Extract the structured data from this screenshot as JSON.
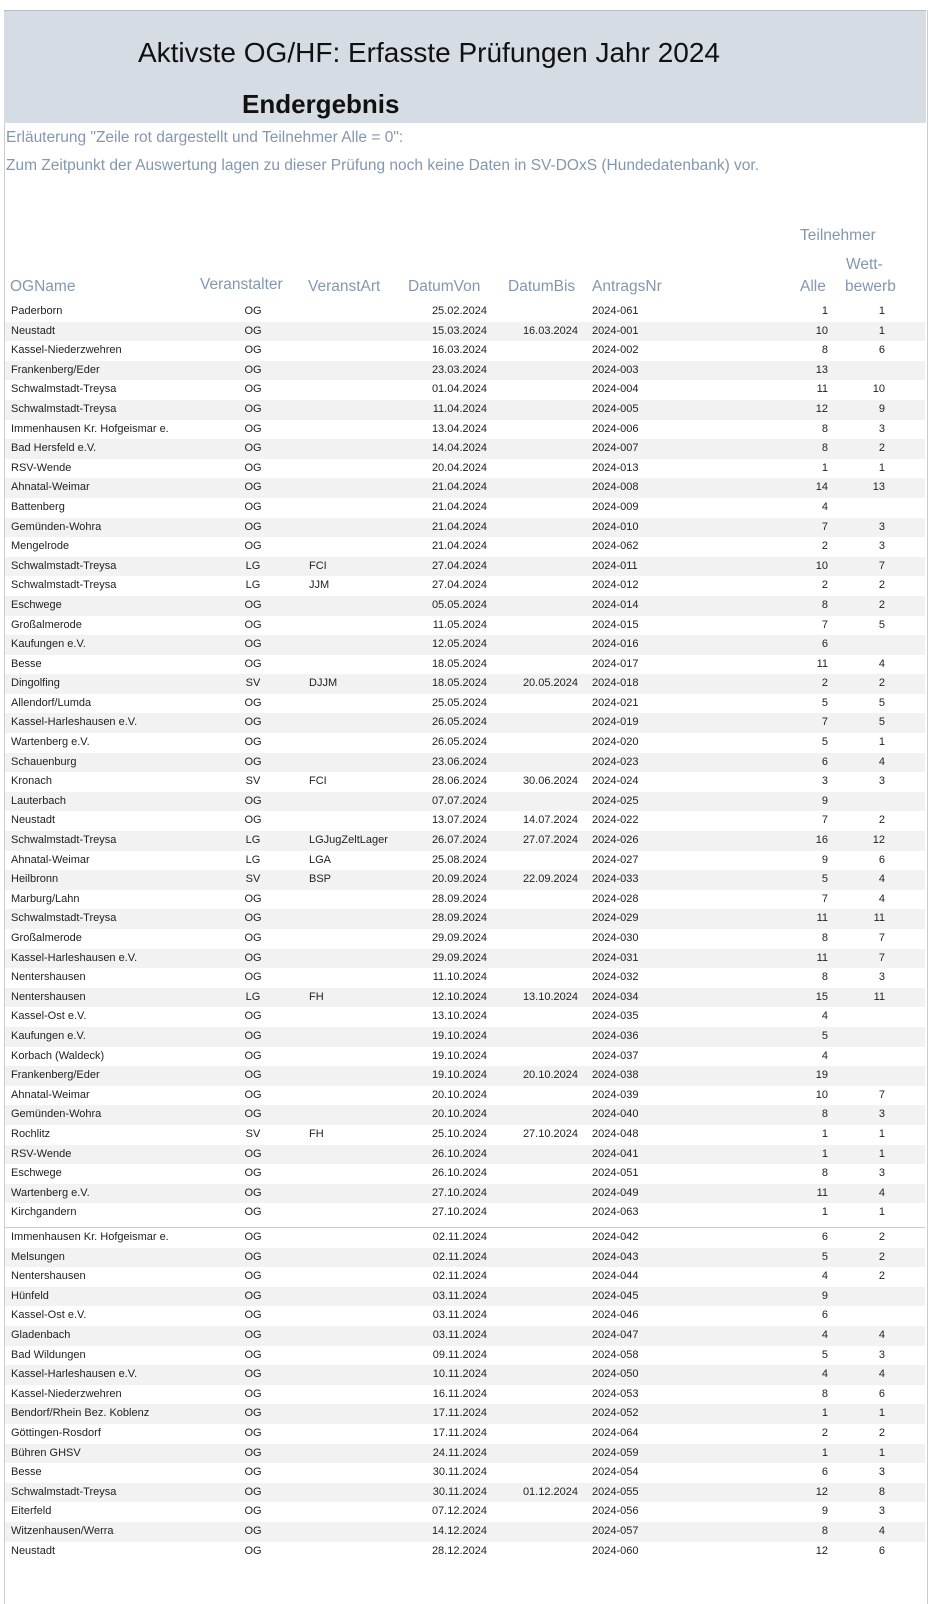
{
  "header": {
    "title": "Aktivste OG/HF: Erfasste Prüfungen Jahr 2024",
    "subtitle": "Endergebnis"
  },
  "notes": {
    "line1": "Erläuterung \"Zeile rot dargestellt und Teilnehmer Alle = 0\":",
    "line2": "Zum Zeitpunkt der Auswertung lagen zu dieser Prüfung noch keine Daten in SV-DOxS (Hundedatenbank) vor."
  },
  "columns": {
    "group": "Teilnehmer",
    "og_name": "OGName",
    "veranstalter": "Veranstalter",
    "veranst_art": "VeranstArt",
    "datum_von": "DatumVon",
    "datum_bis": "DatumBis",
    "antrags_nr": "AntragsNr",
    "alle": "Alle",
    "wett1": "Wett-",
    "wett2": "bewerb"
  },
  "colors": {
    "header_band": "#d6dce4",
    "label_text": "#8497b0",
    "stripe": "#f2f2f2"
  },
  "section1": [
    [
      "Paderborn",
      "OG",
      "",
      "25.02.2024",
      "",
      "2024-061",
      "1",
      "1"
    ],
    [
      "Neustadt",
      "OG",
      "",
      "15.03.2024",
      "16.03.2024",
      "2024-001",
      "10",
      "1"
    ],
    [
      "Kassel-Niederzwehren",
      "OG",
      "",
      "16.03.2024",
      "",
      "2024-002",
      "8",
      "6"
    ],
    [
      "Frankenberg/Eder",
      "OG",
      "",
      "23.03.2024",
      "",
      "2024-003",
      "13",
      ""
    ],
    [
      "Schwalmstadt-Treysa",
      "OG",
      "",
      "01.04.2024",
      "",
      "2024-004",
      "11",
      "10"
    ],
    [
      "Schwalmstadt-Treysa",
      "OG",
      "",
      "11.04.2024",
      "",
      "2024-005",
      "12",
      "9"
    ],
    [
      "Immenhausen Kr. Hofgeismar e.",
      "OG",
      "",
      "13.04.2024",
      "",
      "2024-006",
      "8",
      "3"
    ],
    [
      "Bad Hersfeld e.V.",
      "OG",
      "",
      "14.04.2024",
      "",
      "2024-007",
      "8",
      "2"
    ],
    [
      "RSV-Wende",
      "OG",
      "",
      "20.04.2024",
      "",
      "2024-013",
      "1",
      "1"
    ],
    [
      "Ahnatal-Weimar",
      "OG",
      "",
      "21.04.2024",
      "",
      "2024-008",
      "14",
      "13"
    ],
    [
      "Battenberg",
      "OG",
      "",
      "21.04.2024",
      "",
      "2024-009",
      "4",
      ""
    ],
    [
      "Gemünden-Wohra",
      "OG",
      "",
      "21.04.2024",
      "",
      "2024-010",
      "7",
      "3"
    ],
    [
      "Mengelrode",
      "OG",
      "",
      "21.04.2024",
      "",
      "2024-062",
      "2",
      "3"
    ],
    [
      "Schwalmstadt-Treysa",
      "LG",
      "FCI",
      "27.04.2024",
      "",
      "2024-011",
      "10",
      "7"
    ],
    [
      "Schwalmstadt-Treysa",
      "LG",
      "JJM",
      "27.04.2024",
      "",
      "2024-012",
      "2",
      "2"
    ],
    [
      "Eschwege",
      "OG",
      "",
      "05.05.2024",
      "",
      "2024-014",
      "8",
      "2"
    ],
    [
      "Großalmerode",
      "OG",
      "",
      "11.05.2024",
      "",
      "2024-015",
      "7",
      "5"
    ],
    [
      "Kaufungen e.V.",
      "OG",
      "",
      "12.05.2024",
      "",
      "2024-016",
      "6",
      ""
    ],
    [
      "Besse",
      "OG",
      "",
      "18.05.2024",
      "",
      "2024-017",
      "11",
      "4"
    ],
    [
      "Dingolfing",
      "SV",
      "DJJM",
      "18.05.2024",
      "20.05.2024",
      "2024-018",
      "2",
      "2"
    ],
    [
      "Allendorf/Lumda",
      "OG",
      "",
      "25.05.2024",
      "",
      "2024-021",
      "5",
      "5"
    ],
    [
      "Kassel-Harleshausen e.V.",
      "OG",
      "",
      "26.05.2024",
      "",
      "2024-019",
      "7",
      "5"
    ],
    [
      "Wartenberg e.V.",
      "OG",
      "",
      "26.05.2024",
      "",
      "2024-020",
      "5",
      "1"
    ],
    [
      "Schauenburg",
      "OG",
      "",
      "23.06.2024",
      "",
      "2024-023",
      "6",
      "4"
    ],
    [
      "Kronach",
      "SV",
      "FCI",
      "28.06.2024",
      "30.06.2024",
      "2024-024",
      "3",
      "3"
    ],
    [
      "Lauterbach",
      "OG",
      "",
      "07.07.2024",
      "",
      "2024-025",
      "9",
      ""
    ],
    [
      "Neustadt",
      "OG",
      "",
      "13.07.2024",
      "14.07.2024",
      "2024-022",
      "7",
      "2"
    ],
    [
      "Schwalmstadt-Treysa",
      "LG",
      "LGJugZeltLager",
      "26.07.2024",
      "27.07.2024",
      "2024-026",
      "16",
      "12"
    ],
    [
      "Ahnatal-Weimar",
      "LG",
      "LGA",
      "25.08.2024",
      "",
      "2024-027",
      "9",
      "6"
    ],
    [
      "Heilbronn",
      "SV",
      "BSP",
      "20.09.2024",
      "22.09.2024",
      "2024-033",
      "5",
      "4"
    ],
    [
      "Marburg/Lahn",
      "OG",
      "",
      "28.09.2024",
      "",
      "2024-028",
      "7",
      "4"
    ],
    [
      "Schwalmstadt-Treysa",
      "OG",
      "",
      "28.09.2024",
      "",
      "2024-029",
      "11",
      "11"
    ],
    [
      "Großalmerode",
      "OG",
      "",
      "29.09.2024",
      "",
      "2024-030",
      "8",
      "7"
    ],
    [
      "Kassel-Harleshausen e.V.",
      "OG",
      "",
      "29.09.2024",
      "",
      "2024-031",
      "11",
      "7"
    ],
    [
      "Nentershausen",
      "OG",
      "",
      "11.10.2024",
      "",
      "2024-032",
      "8",
      "3"
    ],
    [
      "Nentershausen",
      "LG",
      "FH",
      "12.10.2024",
      "13.10.2024",
      "2024-034",
      "15",
      "11"
    ],
    [
      "Kassel-Ost e.V.",
      "OG",
      "",
      "13.10.2024",
      "",
      "2024-035",
      "4",
      ""
    ],
    [
      "Kaufungen e.V.",
      "OG",
      "",
      "19.10.2024",
      "",
      "2024-036",
      "5",
      ""
    ],
    [
      "Korbach (Waldeck)",
      "OG",
      "",
      "19.10.2024",
      "",
      "2024-037",
      "4",
      ""
    ],
    [
      "Frankenberg/Eder",
      "OG",
      "",
      "19.10.2024",
      "20.10.2024",
      "2024-038",
      "19",
      ""
    ],
    [
      "Ahnatal-Weimar",
      "OG",
      "",
      "20.10.2024",
      "",
      "2024-039",
      "10",
      "7"
    ],
    [
      "Gemünden-Wohra",
      "OG",
      "",
      "20.10.2024",
      "",
      "2024-040",
      "8",
      "3"
    ],
    [
      "Rochlitz",
      "SV",
      "FH",
      "25.10.2024",
      "27.10.2024",
      "2024-048",
      "1",
      "1"
    ],
    [
      "RSV-Wende",
      "OG",
      "",
      "26.10.2024",
      "",
      "2024-041",
      "1",
      "1"
    ],
    [
      "Eschwege",
      "OG",
      "",
      "26.10.2024",
      "",
      "2024-051",
      "8",
      "3"
    ],
    [
      "Wartenberg e.V.",
      "OG",
      "",
      "27.10.2024",
      "",
      "2024-049",
      "11",
      "4"
    ],
    [
      "Kirchgandern",
      "OG",
      "",
      "27.10.2024",
      "",
      "2024-063",
      "1",
      "1"
    ]
  ],
  "section2": [
    [
      "Immenhausen Kr. Hofgeismar e.",
      "OG",
      "",
      "02.11.2024",
      "",
      "2024-042",
      "6",
      "2"
    ],
    [
      "Melsungen",
      "OG",
      "",
      "02.11.2024",
      "",
      "2024-043",
      "5",
      "2"
    ],
    [
      "Nentershausen",
      "OG",
      "",
      "02.11.2024",
      "",
      "2024-044",
      "4",
      "2"
    ],
    [
      "Hünfeld",
      "OG",
      "",
      "03.11.2024",
      "",
      "2024-045",
      "9",
      ""
    ],
    [
      "Kassel-Ost e.V.",
      "OG",
      "",
      "03.11.2024",
      "",
      "2024-046",
      "6",
      ""
    ],
    [
      "Gladenbach",
      "OG",
      "",
      "03.11.2024",
      "",
      "2024-047",
      "4",
      "4"
    ],
    [
      "Bad Wildungen",
      "OG",
      "",
      "09.11.2024",
      "",
      "2024-058",
      "5",
      "3"
    ],
    [
      "Kassel-Harleshausen e.V.",
      "OG",
      "",
      "10.11.2024",
      "",
      "2024-050",
      "4",
      "4"
    ],
    [
      "Kassel-Niederzwehren",
      "OG",
      "",
      "16.11.2024",
      "",
      "2024-053",
      "8",
      "6"
    ],
    [
      "Bendorf/Rhein Bez. Koblenz",
      "OG",
      "",
      "17.11.2024",
      "",
      "2024-052",
      "1",
      "1"
    ],
    [
      "Göttingen-Rosdorf",
      "OG",
      "",
      "17.11.2024",
      "",
      "2024-064",
      "2",
      "2"
    ],
    [
      "Bühren GHSV",
      "OG",
      "",
      "24.11.2024",
      "",
      "2024-059",
      "1",
      "1"
    ],
    [
      "Besse",
      "OG",
      "",
      "30.11.2024",
      "",
      "2024-054",
      "6",
      "3"
    ],
    [
      "Schwalmstadt-Treysa",
      "OG",
      "",
      "30.11.2024",
      "01.12.2024",
      "2024-055",
      "12",
      "8"
    ],
    [
      "Eiterfeld",
      "OG",
      "",
      "07.12.2024",
      "",
      "2024-056",
      "9",
      "3"
    ],
    [
      "Witzenhausen/Werra",
      "OG",
      "",
      "14.12.2024",
      "",
      "2024-057",
      "8",
      "4"
    ],
    [
      "Neustadt",
      "OG",
      "",
      "28.12.2024",
      "",
      "2024-060",
      "12",
      "6"
    ]
  ]
}
